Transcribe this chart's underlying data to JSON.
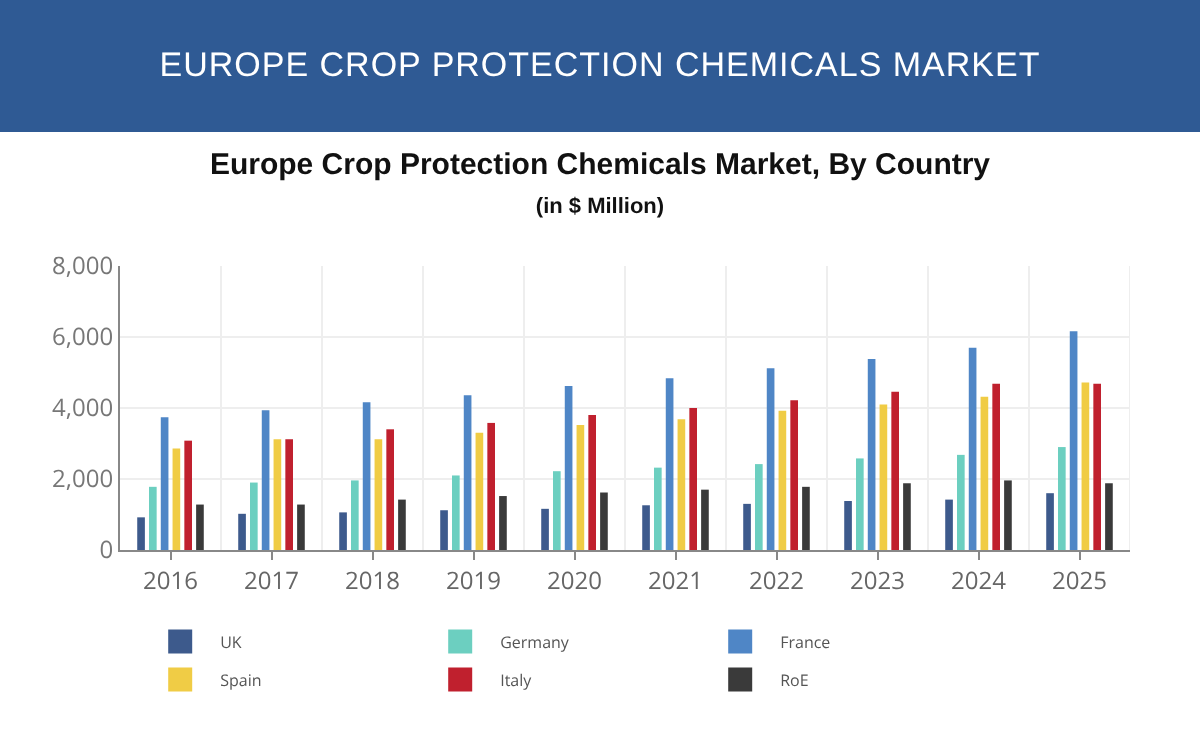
{
  "chart_data": {
    "type": "bar",
    "title": "Europe Crop Protection Chemicals Market, By Country",
    "subtitle": "(in $ Million)",
    "annotations": [
      "EUROPE CROP PROTECTION CHEMICALS MARKET"
    ],
    "categories": [
      "2016",
      "2017",
      "2018",
      "2019",
      "2020",
      "2021",
      "2022",
      "2023",
      "2024",
      "2025"
    ],
    "series": [
      {
        "name": "UK",
        "color": "#3d5a8c",
        "values": [
          920,
          1020,
          1060,
          1120,
          1160,
          1260,
          1300,
          1380,
          1420,
          1600
        ]
      },
      {
        "name": "Germany",
        "color": "#6ccfc0",
        "values": [
          1780,
          1900,
          1960,
          2100,
          2220,
          2320,
          2420,
          2580,
          2680,
          2900
        ]
      },
      {
        "name": "France",
        "color": "#4f86c6",
        "values": [
          3740,
          3940,
          4160,
          4360,
          4620,
          4840,
          5120,
          5380,
          5700,
          6160
        ]
      },
      {
        "name": "Spain",
        "color": "#f0cc45",
        "values": [
          2860,
          3120,
          3120,
          3300,
          3520,
          3680,
          3920,
          4100,
          4320,
          4720
        ]
      },
      {
        "name": "Italy",
        "color": "#c0202e",
        "values": [
          3080,
          3120,
          3400,
          3580,
          3800,
          4000,
          4220,
          4460,
          4680,
          4680
        ]
      },
      {
        "name": "RoE",
        "color": "#3a3a3a",
        "values": [
          1280,
          1280,
          1420,
          1520,
          1620,
          1700,
          1780,
          1880,
          1960,
          1880
        ]
      }
    ],
    "ylim": [
      0,
      8000
    ],
    "yticks": [
      {
        "value": 0,
        "label": "0"
      },
      {
        "value": 2000,
        "label": "2,000"
      },
      {
        "value": 4000,
        "label": "4,000"
      },
      {
        "value": 6000,
        "label": "6,000"
      },
      {
        "value": 8000,
        "label": "8,000"
      }
    ],
    "grid": true,
    "legend": "bottom"
  }
}
